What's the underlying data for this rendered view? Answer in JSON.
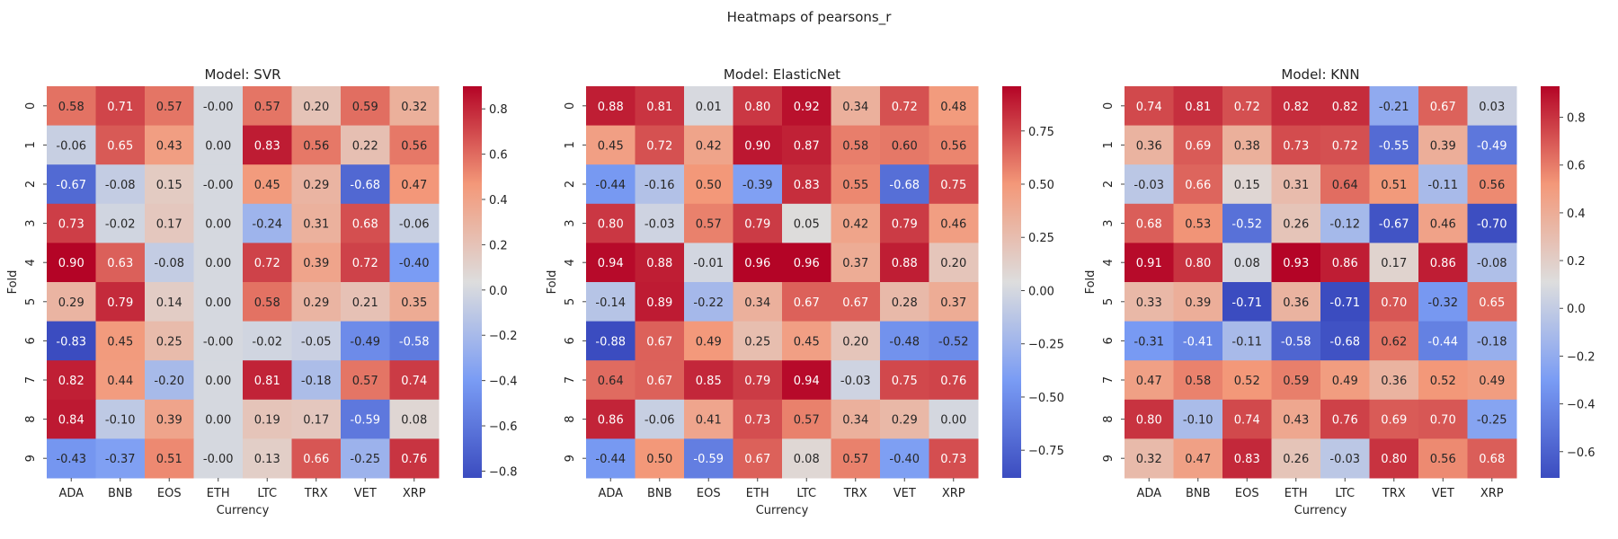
{
  "figure": {
    "suptitle": "Heatmaps of pearsons_r"
  },
  "colormap": {
    "name": "coolwarm",
    "low": "#3b4cc0",
    "mid": "#dddddd",
    "high": "#b40426"
  },
  "chart_data": [
    {
      "type": "heatmap",
      "title": "Model: SVR",
      "xlabel": "Currency",
      "ylabel": "Fold",
      "x": [
        "ADA",
        "BNB",
        "EOS",
        "ETH",
        "LTC",
        "TRX",
        "VET",
        "XRP"
      ],
      "y": [
        "0",
        "1",
        "2",
        "3",
        "4",
        "5",
        "6",
        "7",
        "8",
        "9"
      ],
      "values": [
        [
          0.58,
          0.71,
          0.57,
          -0.0,
          0.57,
          0.2,
          0.59,
          0.32
        ],
        [
          -0.06,
          0.65,
          0.43,
          0.0,
          0.83,
          0.56,
          0.22,
          0.56
        ],
        [
          -0.67,
          -0.08,
          0.15,
          -0.0,
          0.45,
          0.29,
          -0.68,
          0.47
        ],
        [
          0.73,
          -0.02,
          0.17,
          0.0,
          -0.24,
          0.31,
          0.68,
          -0.06
        ],
        [
          0.9,
          0.63,
          -0.08,
          0.0,
          0.72,
          0.39,
          0.72,
          -0.4
        ],
        [
          0.29,
          0.79,
          0.14,
          0.0,
          0.58,
          0.29,
          0.21,
          0.35
        ],
        [
          -0.83,
          0.45,
          0.25,
          -0.0,
          -0.02,
          -0.05,
          -0.49,
          -0.58
        ],
        [
          0.82,
          0.44,
          -0.2,
          0.0,
          0.81,
          -0.18,
          0.57,
          0.74
        ],
        [
          0.84,
          -0.1,
          0.39,
          0.0,
          0.19,
          0.17,
          -0.59,
          0.08
        ],
        [
          -0.43,
          -0.37,
          0.51,
          -0.0,
          0.13,
          0.66,
          -0.25,
          0.76
        ]
      ],
      "labels": [
        [
          "0.58",
          "0.71",
          "0.57",
          "-0.00",
          "0.57",
          "0.20",
          "0.59",
          "0.32"
        ],
        [
          "-0.06",
          "0.65",
          "0.43",
          "0.00",
          "0.83",
          "0.56",
          "0.22",
          "0.56"
        ],
        [
          "-0.67",
          "-0.08",
          "0.15",
          "-0.00",
          "0.45",
          "0.29",
          "-0.68",
          "0.47"
        ],
        [
          "0.73",
          "-0.02",
          "0.17",
          "0.00",
          "-0.24",
          "0.31",
          "0.68",
          "-0.06"
        ],
        [
          "0.90",
          "0.63",
          "-0.08",
          "0.00",
          "0.72",
          "0.39",
          "0.72",
          "-0.40"
        ],
        [
          "0.29",
          "0.79",
          "0.14",
          "0.00",
          "0.58",
          "0.29",
          "0.21",
          "0.35"
        ],
        [
          "-0.83",
          "0.45",
          "0.25",
          "-0.00",
          "-0.02",
          "-0.05",
          "-0.49",
          "-0.58"
        ],
        [
          "0.82",
          "0.44",
          "-0.20",
          "0.00",
          "0.81",
          "-0.18",
          "0.57",
          "0.74"
        ],
        [
          "0.84",
          "-0.10",
          "0.39",
          "0.00",
          "0.19",
          "0.17",
          "-0.59",
          "0.08"
        ],
        [
          "-0.43",
          "-0.37",
          "0.51",
          "-0.00",
          "0.13",
          "0.66",
          "-0.25",
          "0.76"
        ]
      ],
      "colorbar": {
        "vmin": -0.83,
        "vmax": 0.9,
        "ticks": [
          -0.8,
          -0.6,
          -0.4,
          -0.2,
          0.0,
          0.2,
          0.4,
          0.6,
          0.8
        ],
        "tick_labels": [
          "−0.8",
          "−0.6",
          "−0.4",
          "−0.2",
          "0.0",
          "0.2",
          "0.4",
          "0.6",
          "0.8"
        ]
      }
    },
    {
      "type": "heatmap",
      "title": "Model: ElasticNet",
      "xlabel": "Currency",
      "ylabel": "Fold",
      "x": [
        "ADA",
        "BNB",
        "EOS",
        "ETH",
        "LTC",
        "TRX",
        "VET",
        "XRP"
      ],
      "y": [
        "0",
        "1",
        "2",
        "3",
        "4",
        "5",
        "6",
        "7",
        "8",
        "9"
      ],
      "values": [
        [
          0.88,
          0.81,
          0.01,
          0.8,
          0.92,
          0.34,
          0.72,
          0.48
        ],
        [
          0.45,
          0.72,
          0.42,
          0.9,
          0.87,
          0.58,
          0.6,
          0.56
        ],
        [
          -0.44,
          -0.16,
          0.5,
          -0.39,
          0.83,
          0.55,
          -0.68,
          0.75
        ],
        [
          0.8,
          -0.03,
          0.57,
          0.79,
          0.05,
          0.42,
          0.79,
          0.46
        ],
        [
          0.94,
          0.88,
          -0.01,
          0.96,
          0.96,
          0.37,
          0.88,
          0.2
        ],
        [
          -0.14,
          0.89,
          -0.22,
          0.34,
          0.67,
          0.67,
          0.28,
          0.37
        ],
        [
          -0.88,
          0.67,
          0.49,
          0.25,
          0.45,
          0.2,
          -0.48,
          -0.52
        ],
        [
          0.64,
          0.67,
          0.85,
          0.79,
          0.94,
          -0.03,
          0.75,
          0.76
        ],
        [
          0.86,
          -0.06,
          0.41,
          0.73,
          0.57,
          0.34,
          0.29,
          0.0
        ],
        [
          -0.44,
          0.5,
          -0.59,
          0.67,
          0.08,
          0.57,
          -0.4,
          0.73
        ]
      ],
      "labels": [
        [
          "0.88",
          "0.81",
          "0.01",
          "0.80",
          "0.92",
          "0.34",
          "0.72",
          "0.48"
        ],
        [
          "0.45",
          "0.72",
          "0.42",
          "0.90",
          "0.87",
          "0.58",
          "0.60",
          "0.56"
        ],
        [
          "-0.44",
          "-0.16",
          "0.50",
          "-0.39",
          "0.83",
          "0.55",
          "-0.68",
          "0.75"
        ],
        [
          "0.80",
          "-0.03",
          "0.57",
          "0.79",
          "0.05",
          "0.42",
          "0.79",
          "0.46"
        ],
        [
          "0.94",
          "0.88",
          "-0.01",
          "0.96",
          "0.96",
          "0.37",
          "0.88",
          "0.20"
        ],
        [
          "-0.14",
          "0.89",
          "-0.22",
          "0.34",
          "0.67",
          "0.67",
          "0.28",
          "0.37"
        ],
        [
          "-0.88",
          "0.67",
          "0.49",
          "0.25",
          "0.45",
          "0.20",
          "-0.48",
          "-0.52"
        ],
        [
          "0.64",
          "0.67",
          "0.85",
          "0.79",
          "0.94",
          "-0.03",
          "0.75",
          "0.76"
        ],
        [
          "0.86",
          "-0.06",
          "0.41",
          "0.73",
          "0.57",
          "0.34",
          "0.29",
          "0.00"
        ],
        [
          "-0.44",
          "0.50",
          "-0.59",
          "0.67",
          "0.08",
          "0.57",
          "-0.40",
          "0.73"
        ]
      ],
      "colorbar": {
        "vmin": -0.88,
        "vmax": 0.96,
        "ticks": [
          -0.75,
          -0.5,
          -0.25,
          0.0,
          0.25,
          0.5,
          0.75
        ],
        "tick_labels": [
          "−0.75",
          "−0.50",
          "−0.25",
          "0.00",
          "0.25",
          "0.50",
          "0.75"
        ]
      }
    },
    {
      "type": "heatmap",
      "title": "Model: KNN",
      "xlabel": "Currency",
      "ylabel": "Fold",
      "x": [
        "ADA",
        "BNB",
        "EOS",
        "ETH",
        "LTC",
        "TRX",
        "VET",
        "XRP"
      ],
      "y": [
        "0",
        "1",
        "2",
        "3",
        "4",
        "5",
        "6",
        "7",
        "8",
        "9"
      ],
      "values": [
        [
          0.74,
          0.81,
          0.72,
          0.82,
          0.82,
          -0.21,
          0.67,
          0.03
        ],
        [
          0.36,
          0.69,
          0.38,
          0.73,
          0.72,
          -0.55,
          0.39,
          -0.49
        ],
        [
          -0.03,
          0.66,
          0.15,
          0.31,
          0.64,
          0.51,
          -0.11,
          0.56
        ],
        [
          0.68,
          0.53,
          -0.52,
          0.26,
          -0.12,
          -0.67,
          0.46,
          -0.7
        ],
        [
          0.91,
          0.8,
          0.08,
          0.93,
          0.86,
          0.17,
          0.86,
          -0.08
        ],
        [
          0.33,
          0.39,
          -0.71,
          0.36,
          -0.71,
          0.7,
          -0.32,
          0.65
        ],
        [
          -0.31,
          -0.41,
          -0.11,
          -0.58,
          -0.68,
          0.62,
          -0.44,
          -0.18
        ],
        [
          0.47,
          0.58,
          0.52,
          0.59,
          0.49,
          0.36,
          0.52,
          0.49
        ],
        [
          0.8,
          -0.1,
          0.74,
          0.43,
          0.76,
          0.69,
          0.7,
          -0.25
        ],
        [
          0.32,
          0.47,
          0.83,
          0.26,
          -0.03,
          0.8,
          0.56,
          0.68
        ]
      ],
      "labels": [
        [
          "0.74",
          "0.81",
          "0.72",
          "0.82",
          "0.82",
          "-0.21",
          "0.67",
          "0.03"
        ],
        [
          "0.36",
          "0.69",
          "0.38",
          "0.73",
          "0.72",
          "-0.55",
          "0.39",
          "-0.49"
        ],
        [
          "-0.03",
          "0.66",
          "0.15",
          "0.31",
          "0.64",
          "0.51",
          "-0.11",
          "0.56"
        ],
        [
          "0.68",
          "0.53",
          "-0.52",
          "0.26",
          "-0.12",
          "-0.67",
          "0.46",
          "-0.70"
        ],
        [
          "0.91",
          "0.80",
          "0.08",
          "0.93",
          "0.86",
          "0.17",
          "0.86",
          "-0.08"
        ],
        [
          "0.33",
          "0.39",
          "-0.71",
          "0.36",
          "-0.71",
          "0.70",
          "-0.32",
          "0.65"
        ],
        [
          "-0.31",
          "-0.41",
          "-0.11",
          "-0.58",
          "-0.68",
          "0.62",
          "-0.44",
          "-0.18"
        ],
        [
          "0.47",
          "0.58",
          "0.52",
          "0.59",
          "0.49",
          "0.36",
          "0.52",
          "0.49"
        ],
        [
          "0.80",
          "-0.10",
          "0.74",
          "0.43",
          "0.76",
          "0.69",
          "0.70",
          "-0.25"
        ],
        [
          "0.32",
          "0.47",
          "0.83",
          "0.26",
          "-0.03",
          "0.80",
          "0.56",
          "0.68"
        ]
      ],
      "colorbar": {
        "vmin": -0.71,
        "vmax": 0.93,
        "ticks": [
          -0.6,
          -0.4,
          -0.2,
          0.0,
          0.2,
          0.4,
          0.6,
          0.8
        ],
        "tick_labels": [
          "−0.6",
          "−0.4",
          "−0.2",
          "0.0",
          "0.2",
          "0.4",
          "0.6",
          "0.8"
        ]
      }
    }
  ]
}
